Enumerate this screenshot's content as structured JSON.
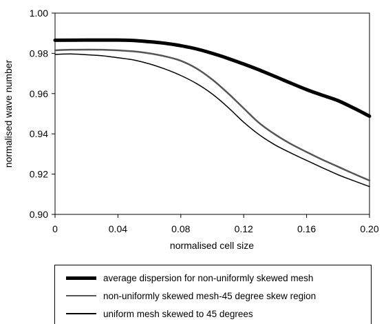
{
  "chart_data": {
    "type": "line",
    "xlabel": "normalised cell size",
    "ylabel": "normalised wave number",
    "xlim": [
      0,
      0.2
    ],
    "ylim": [
      0.9,
      1.0
    ],
    "x_ticks": [
      "0",
      "0.04",
      "0.08",
      "0.12",
      "0.16",
      "0.20"
    ],
    "y_ticks": [
      "0.90",
      "0.92",
      "0.94",
      "0.96",
      "0.98",
      "1.00"
    ],
    "grid": false,
    "legend_position": "bottom",
    "series": [
      {
        "name": "average dispersion for non-uniformly skewed mesh",
        "color": "#000000",
        "style": "thick",
        "x": [
          0,
          0.02,
          0.04,
          0.05,
          0.06,
          0.07,
          0.08,
          0.09,
          0.1,
          0.11,
          0.12,
          0.13,
          0.14,
          0.15,
          0.16,
          0.17,
          0.18,
          0.19,
          0.2
        ],
        "y": [
          0.9865,
          0.9866,
          0.9866,
          0.9864,
          0.9858,
          0.985,
          0.9838,
          0.9822,
          0.98,
          0.9775,
          0.9747,
          0.9717,
          0.9685,
          0.9652,
          0.962,
          0.9592,
          0.9565,
          0.9528,
          0.9488
        ]
      },
      {
        "name": "non-uniformly skewed mesh-45 degree skew region",
        "color": "#555555",
        "style": "medium",
        "x": [
          0,
          0.01,
          0.03,
          0.05,
          0.06,
          0.07,
          0.08,
          0.09,
          0.1,
          0.11,
          0.12,
          0.13,
          0.14,
          0.15,
          0.16,
          0.17,
          0.18,
          0.19,
          0.2
        ],
        "y": [
          0.9815,
          0.9818,
          0.9818,
          0.981,
          0.98,
          0.9785,
          0.9763,
          0.9725,
          0.967,
          0.9602,
          0.9527,
          0.9453,
          0.9397,
          0.935,
          0.931,
          0.9272,
          0.9237,
          0.9202,
          0.9168
        ]
      },
      {
        "name": "uniform mesh skewed to 45 degrees",
        "color": "#000000",
        "style": "thin",
        "x": [
          0,
          0.01,
          0.02,
          0.03,
          0.04,
          0.05,
          0.06,
          0.07,
          0.08,
          0.09,
          0.1,
          0.11,
          0.12,
          0.13,
          0.14,
          0.15,
          0.16,
          0.17,
          0.18,
          0.19,
          0.2
        ],
        "y": [
          0.9795,
          0.9797,
          0.9793,
          0.9788,
          0.9778,
          0.9767,
          0.9748,
          0.9722,
          0.969,
          0.965,
          0.9598,
          0.9532,
          0.9458,
          0.9395,
          0.9345,
          0.9305,
          0.9268,
          0.9232,
          0.9197,
          0.9167,
          0.9138
        ]
      }
    ]
  }
}
